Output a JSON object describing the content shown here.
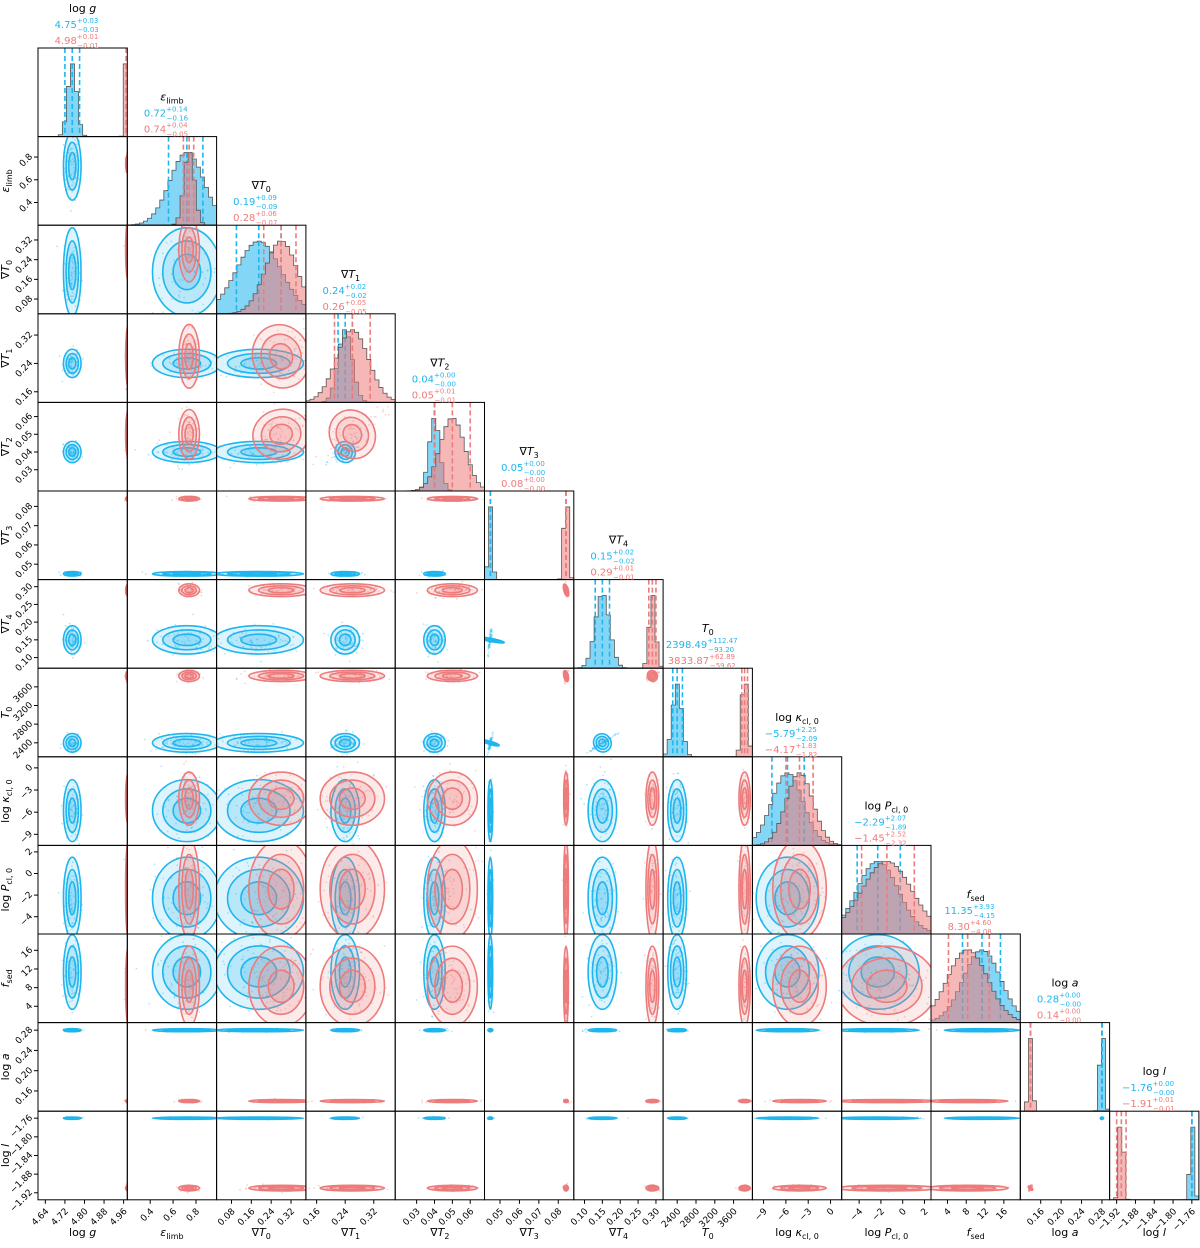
{
  "colors": {
    "blue": "#1fb5ee",
    "red": "#ee7b7b",
    "axis": "#000000"
  },
  "chart_data": {
    "type": "corner",
    "legend": "none",
    "series": [
      {
        "name": "",
        "color": "#1fb5ee"
      },
      {
        "name": "",
        "color": "#ee7b7b"
      }
    ],
    "params": [
      {
        "key": "logg",
        "label": "log g",
        "range": [
          4.61,
          4.975
        ],
        "ticks": [
          4.64,
          4.72,
          4.8,
          4.88,
          4.96
        ],
        "tick_labels": [
          "4.64",
          "4.72",
          "4.80",
          "4.88",
          "4.96"
        ],
        "title_main": "log ",
        "title_it": "g",
        "title_sub": "",
        "blue": {
          "median": 4.75,
          "plus": "+0.03",
          "minus": "−0.03",
          "label": "4.75",
          "sd": 0.018
        },
        "red": {
          "median": 4.98,
          "plus": "+0.01",
          "minus": "−0.01",
          "label": "4.98",
          "sd": 0.006
        }
      },
      {
        "key": "eps",
        "label": "ε_limb",
        "range": [
          0.2,
          0.98
        ],
        "ticks": [
          0.4,
          0.6,
          0.8
        ],
        "tick_labels": [
          "0.4",
          "0.6",
          "0.8"
        ],
        "title_main": "",
        "title_it": "ε",
        "title_sub": "limb",
        "blue": {
          "median": 0.72,
          "plus": "+0.14",
          "minus": "−0.16",
          "label": "0.72",
          "sd": 0.15
        },
        "red": {
          "median": 0.74,
          "plus": "+0.04",
          "minus": "−0.05",
          "label": "0.74",
          "sd": 0.045
        }
      },
      {
        "key": "dT0",
        "label": "∇T_0",
        "range": [
          0.02,
          0.38
        ],
        "ticks": [
          0.08,
          0.16,
          0.24,
          0.32
        ],
        "tick_labels": [
          "0.08",
          "0.16",
          "0.24",
          "0.32"
        ],
        "title_main": "∇",
        "title_it": "T",
        "title_sub": "0",
        "blue": {
          "median": 0.19,
          "plus": "+0.09",
          "minus": "−0.09",
          "label": "0.19",
          "sd": 0.09
        },
        "red": {
          "median": 0.28,
          "plus": "+0.06",
          "minus": "−0.07",
          "label": "0.28",
          "sd": 0.065
        }
      },
      {
        "key": "dT1",
        "label": "∇T_1",
        "range": [
          0.13,
          0.38
        ],
        "ticks": [
          0.16,
          0.24,
          0.32
        ],
        "tick_labels": [
          "0.16",
          "0.24",
          "0.32"
        ],
        "title_main": "∇",
        "title_it": "T",
        "title_sub": "1",
        "blue": {
          "median": 0.24,
          "plus": "+0.02",
          "minus": "−0.02",
          "label": "0.24",
          "sd": 0.02
        },
        "red": {
          "median": 0.26,
          "plus": "+0.05",
          "minus": "−0.05",
          "label": "0.26",
          "sd": 0.045
        }
      },
      {
        "key": "dT2",
        "label": "∇T_2",
        "range": [
          0.018,
          0.068
        ],
        "ticks": [
          0.03,
          0.04,
          0.05,
          0.06
        ],
        "tick_labels": [
          "0.03",
          "0.04",
          "0.05",
          "0.06"
        ],
        "title_main": "∇",
        "title_it": "T",
        "title_sub": "2",
        "blue": {
          "median": 0.04,
          "plus": "+0.00",
          "minus": "−0.00",
          "label": "0.04",
          "sd": 0.003
        },
        "red": {
          "median": 0.05,
          "plus": "+0.01",
          "minus": "−0.01",
          "label": "0.05",
          "sd": 0.007
        }
      },
      {
        "key": "dT3",
        "label": "∇T_3",
        "range": [
          0.042,
          0.088
        ],
        "ticks": [
          0.05,
          0.06,
          0.07,
          0.08
        ],
        "tick_labels": [
          "0.05",
          "0.06",
          "0.07",
          "0.08"
        ],
        "title_main": "∇",
        "title_it": "T",
        "title_sub": "3",
        "blue": {
          "median": 0.045,
          "plus": "+0.00",
          "minus": "−0.00",
          "label": "0.05",
          "sd": 0.0006
        },
        "red": {
          "median": 0.084,
          "plus": "+0.00",
          "minus": "−0.00",
          "label": "0.08",
          "sd": 0.0006
        }
      },
      {
        "key": "dT4",
        "label": "∇T_4",
        "range": [
          0.07,
          0.32
        ],
        "ticks": [
          0.1,
          0.15,
          0.2,
          0.25,
          0.3
        ],
        "tick_labels": [
          "0.10",
          "0.15",
          "0.20",
          "0.25",
          "0.30"
        ],
        "title_main": "∇",
        "title_it": "T",
        "title_sub": "4",
        "blue": {
          "median": 0.15,
          "plus": "+0.02",
          "minus": "−0.02",
          "label": "0.15",
          "sd": 0.02
        },
        "red": {
          "median": 0.29,
          "plus": "+0.01",
          "minus": "−0.01",
          "label": "0.29",
          "sd": 0.009
        }
      },
      {
        "key": "T0",
        "label": "T_0",
        "range": [
          2100,
          4000
        ],
        "ticks": [
          2400,
          2800,
          3200,
          3600
        ],
        "tick_labels": [
          "2400",
          "2800",
          "3200",
          "3600"
        ],
        "title_main": "",
        "title_it": "T",
        "title_sub": "0",
        "blue": {
          "median": 2398.49,
          "plus": "+112.47",
          "minus": "−93.20",
          "label": "2398.49",
          "sd": 100
        },
        "red": {
          "median": 3833.87,
          "plus": "+62.89",
          "minus": "−59.62",
          "label": "3833.87",
          "sd": 60
        }
      },
      {
        "key": "kcl",
        "label": "log κ_cl,0",
        "range": [
          -10.5,
          1.5
        ],
        "ticks": [
          -9,
          -6,
          -3,
          0
        ],
        "tick_labels": [
          "−9",
          "−6",
          "−3",
          "0"
        ],
        "title_main": "log ",
        "title_it": "κ",
        "title_sub": "cl, 0",
        "blue": {
          "median": -5.79,
          "plus": "+2.25",
          "minus": "−2.09",
          "label": "−5.79",
          "sd": 2.1
        },
        "red": {
          "median": -4.17,
          "plus": "+1.83",
          "minus": "−1.82",
          "label": "−4.17",
          "sd": 1.8
        }
      },
      {
        "key": "Pcl",
        "label": "log P_cl,0",
        "range": [
          -5.6,
          2.6
        ],
        "ticks": [
          -4,
          -2,
          0,
          2
        ],
        "tick_labels": [
          "−4",
          "−2",
          "0",
          "2"
        ],
        "title_main": "log ",
        "title_it": "P",
        "title_sub": "cl, 0",
        "blue": {
          "median": -2.29,
          "plus": "+2.07",
          "minus": "−1.89",
          "label": "−2.29",
          "sd": 1.9
        },
        "red": {
          "median": -1.45,
          "plus": "+2.52",
          "minus": "−2.32",
          "label": "−1.45",
          "sd": 2.3
        }
      },
      {
        "key": "fsed",
        "label": "f_sed",
        "range": [
          0.5,
          19.5
        ],
        "ticks": [
          4,
          8,
          12,
          16
        ],
        "tick_labels": [
          "4",
          "8",
          "12",
          "16"
        ],
        "title_main": "",
        "title_it": "f",
        "title_sub": "sed",
        "blue": {
          "median": 11.35,
          "plus": "+3.93",
          "minus": "−4.15",
          "label": "11.35",
          "sd": 4.0
        },
        "red": {
          "median": 8.3,
          "plus": "+4.60",
          "minus": "−4.08",
          "label": "8.30",
          "sd": 4.3
        }
      },
      {
        "key": "loga",
        "label": "log a",
        "range": [
          0.12,
          0.295
        ],
        "ticks": [
          0.16,
          0.2,
          0.24,
          0.28
        ],
        "tick_labels": [
          "0.16",
          "0.20",
          "0.24",
          "0.28"
        ],
        "title_main": "log ",
        "title_it": "a",
        "title_sub": "",
        "blue": {
          "median": 0.28,
          "plus": "+0.00",
          "minus": "−0.00",
          "label": "0.28",
          "sd": 0.0015
        },
        "red": {
          "median": 0.14,
          "plus": "+0.00",
          "minus": "−0.00",
          "label": "0.14",
          "sd": 0.0015
        }
      },
      {
        "key": "logl",
        "label": "log l",
        "range": [
          -1.935,
          -1.745
        ],
        "ticks": [
          -1.92,
          -1.88,
          -1.84,
          -1.8,
          -1.76
        ],
        "tick_labels": [
          "−1.92",
          "−1.88",
          "−1.84",
          "−1.80",
          "−1.76"
        ],
        "title_main": "log ",
        "title_it": "l",
        "title_sub": "",
        "blue": {
          "median": -1.76,
          "plus": "+0.00",
          "minus": "−0.00",
          "label": "−1.76",
          "sd": 0.0012
        },
        "red": {
          "median": -1.91,
          "plus": "+0.01",
          "minus": "−0.01",
          "label": "−1.91",
          "sd": 0.003
        }
      }
    ]
  }
}
